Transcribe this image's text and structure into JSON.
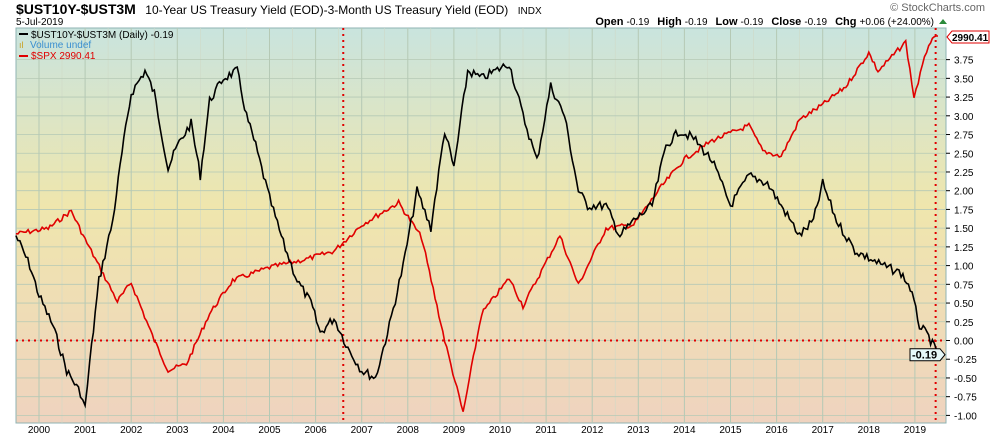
{
  "header": {
    "symbol": "$UST10Y-$UST3M",
    "description": "10-Year US Treasury Yield (EOD)-3-Month US Treasury Yield (EOD)",
    "exchange": "INDX",
    "date": "5-Jul-2019",
    "watermark": "© StockCharts.com",
    "ohlc": [
      {
        "label": "Open",
        "value": "-0.19"
      },
      {
        "label": "High",
        "value": "-0.19"
      },
      {
        "label": "Low",
        "value": "-0.19"
      },
      {
        "label": "Close",
        "value": "-0.19"
      },
      {
        "label": "Chg",
        "value": "+0.06 (+24.00%)"
      }
    ]
  },
  "legend": {
    "spread": "$UST10Y-$UST3M (Daily) -0.19",
    "volume": "Volume undef",
    "spx": "$SPX 2990.41"
  },
  "colors": {
    "spread": "#000000",
    "spx": "#e00000",
    "volume": "#3a8fd0"
  },
  "chart_data": {
    "type": "line",
    "title": "$UST10Y-$UST3M vs $SPX",
    "xlabel": "",
    "ylabel": "",
    "x_ticks": [
      "2000",
      "2001",
      "2002",
      "2003",
      "2004",
      "2005",
      "2006",
      "2007",
      "2008",
      "2009",
      "2010",
      "2011",
      "2012",
      "2013",
      "2014",
      "2015",
      "2016",
      "2017",
      "2018",
      "2019"
    ],
    "y_ticks": [
      "3.75",
      "3.50",
      "3.25",
      "3.00",
      "2.75",
      "2.50",
      "2.25",
      "2.00",
      "1.75",
      "1.50",
      "1.25",
      "1.00",
      "0.75",
      "0.50",
      "0.25",
      "0.00",
      "-0.25",
      "-0.50",
      "-0.75",
      "-1.00"
    ],
    "ylim": [
      -1.05,
      3.95
    ],
    "xlim": [
      1999.5,
      2019.65
    ],
    "reference_lines": {
      "horizontal": 0,
      "vertical": [
        2006.6,
        2019.45
      ]
    },
    "series": [
      {
        "name": "$UST10Y-$UST3M",
        "last_label": "-0.19",
        "x": [
          1999.5,
          1999.8,
          2000.0,
          2000.3,
          2000.6,
          2000.9,
          2001.0,
          2001.1,
          2001.3,
          2001.6,
          2001.8,
          2002.0,
          2002.3,
          2002.5,
          2002.8,
          2003.0,
          2003.3,
          2003.5,
          2003.7,
          2004.0,
          2004.3,
          2004.5,
          2004.7,
          2005.0,
          2005.3,
          2005.6,
          2005.9,
          2006.1,
          2006.4,
          2006.7,
          2007.0,
          2007.3,
          2007.6,
          2007.9,
          2008.2,
          2008.5,
          2008.8,
          2009.0,
          2009.3,
          2009.6,
          2009.9,
          2010.2,
          2010.5,
          2010.8,
          2011.1,
          2011.4,
          2011.7,
          2011.9,
          2012.3,
          2012.6,
          2012.9,
          2013.3,
          2013.6,
          2013.9,
          2014.2,
          2014.6,
          2015.0,
          2015.4,
          2015.8,
          2016.1,
          2016.5,
          2016.8,
          2017.0,
          2017.3,
          2017.7,
          2018.0,
          2018.3,
          2018.7,
          2018.9,
          2019.1,
          2019.3,
          2019.5
        ],
        "values": [
          1.4,
          1.0,
          0.6,
          0.2,
          -0.4,
          -0.7,
          -0.9,
          -0.3,
          0.8,
          1.6,
          2.5,
          3.3,
          3.6,
          3.3,
          2.3,
          2.6,
          2.9,
          2.2,
          3.2,
          3.5,
          3.6,
          3.0,
          2.6,
          1.9,
          1.3,
          0.8,
          0.5,
          0.1,
          0.3,
          -0.1,
          -0.4,
          -0.5,
          0.2,
          1.0,
          2.0,
          1.5,
          2.8,
          2.3,
          3.6,
          3.5,
          3.6,
          3.7,
          3.0,
          2.4,
          3.4,
          3.0,
          2.0,
          1.8,
          1.8,
          1.4,
          1.6,
          1.8,
          2.6,
          2.8,
          2.7,
          2.4,
          1.8,
          2.2,
          2.1,
          1.8,
          1.4,
          1.6,
          2.1,
          1.6,
          1.2,
          1.1,
          1.0,
          0.9,
          0.7,
          0.2,
          0.05,
          -0.19
        ]
      },
      {
        "name": "$SPX",
        "last_label": "2990.41",
        "scale": "log-overlay",
        "x": [
          1999.5,
          2000.2,
          2000.7,
          2001.0,
          2001.7,
          2002.0,
          2002.5,
          2002.8,
          2003.2,
          2003.7,
          2004.2,
          2005.0,
          2005.8,
          2006.4,
          2007.0,
          2007.8,
          2008.3,
          2008.8,
          2009.2,
          2009.6,
          2010.2,
          2010.5,
          2011.3,
          2011.7,
          2012.3,
          2012.9,
          2013.5,
          2014.0,
          2014.6,
          2015.4,
          2015.7,
          2016.1,
          2016.5,
          2017.0,
          2017.5,
          2018.0,
          2018.2,
          2018.8,
          2018.98,
          2019.3,
          2019.5
        ],
        "values": [
          1370,
          1400,
          1500,
          1340,
          1050,
          1130,
          900,
          800,
          820,
          1000,
          1140,
          1200,
          1240,
          1280,
          1420,
          1550,
          1350,
          900,
          676,
          1000,
          1150,
          1030,
          1360,
          1120,
          1400,
          1420,
          1650,
          1840,
          1980,
          2100,
          1900,
          1860,
          2150,
          2280,
          2450,
          2800,
          2600,
          2920,
          2350,
          2900,
          2990.41
        ]
      }
    ]
  }
}
